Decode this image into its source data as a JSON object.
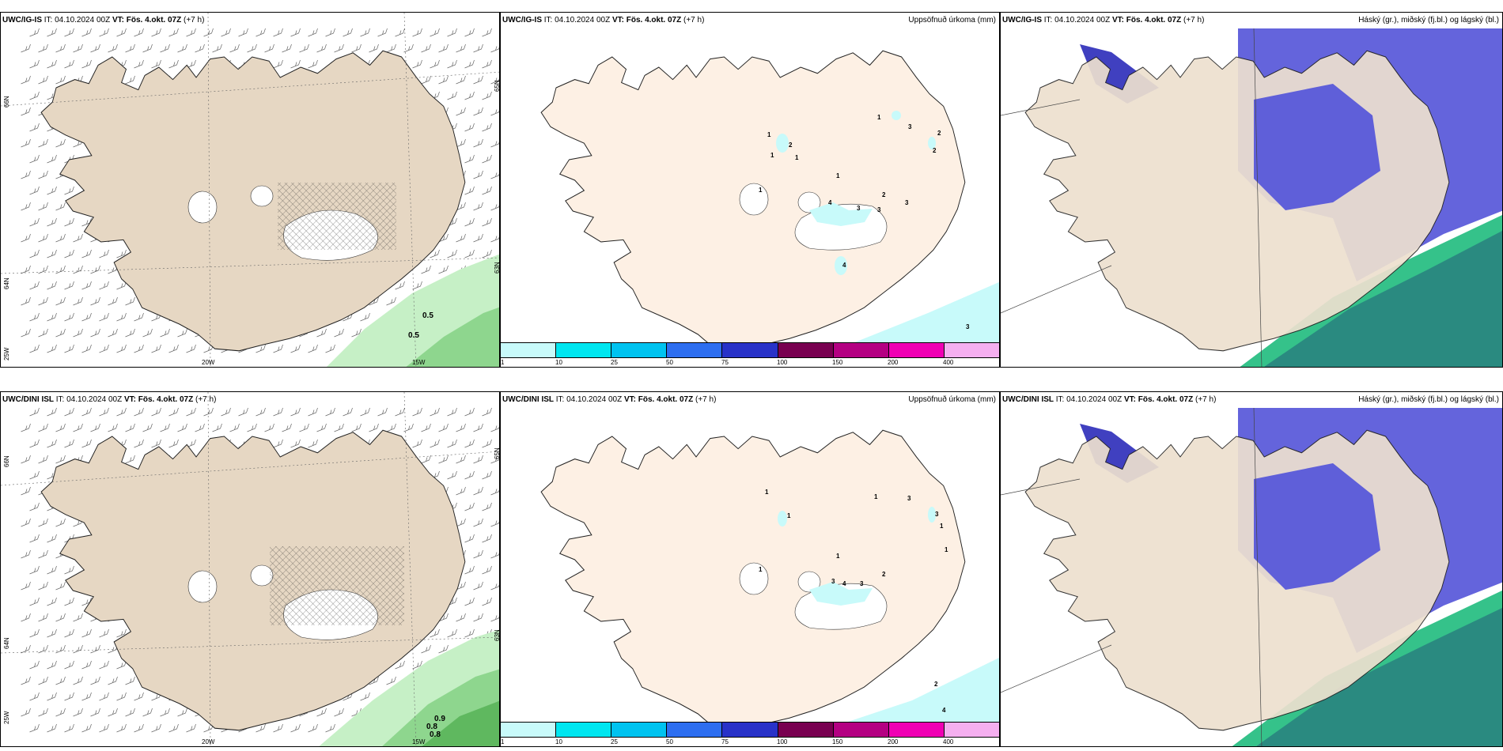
{
  "rows": [
    {
      "model": "UWC/IG-IS",
      "it_label": "IT: 04.10.2024 00Z",
      "vt_label": "VT: Fös. 4.okt. 07Z",
      "lead": "(+7 h)",
      "wind_labels": [
        "0.5",
        "0.5"
      ],
      "precip_numbers": [
        "1",
        "2",
        "1",
        "1",
        "1",
        "3",
        "2",
        "2",
        "1",
        "2",
        "4",
        "3",
        "3",
        "3",
        "1",
        "4",
        "3"
      ]
    },
    {
      "model": "UWC/DINI ISL",
      "it_label": "IT: 04.10.2024 00Z",
      "vt_label": "VT: Fös. 4.okt. 07Z",
      "lead": "(+7 h)",
      "wind_labels": [
        "0.9",
        "0.8",
        "0.8"
      ],
      "precip_numbers": [
        "1",
        "1",
        "1",
        "1",
        "3",
        "3",
        "1",
        "1",
        "3",
        "4",
        "3",
        "2",
        "1",
        "2",
        "4"
      ]
    }
  ],
  "panel_titles": {
    "precip": "Uppsöfnuð úrkoma (mm)",
    "cloud": "Háský (gr.), miðský (fj.bl.) og lágský (bl.)"
  },
  "axis_labels": {
    "lat66": "66N",
    "lat65": "65N",
    "lat64": "64N",
    "lat63": "63N",
    "lon20": "20W",
    "lon15": "15W",
    "lon25": "25W"
  },
  "colorbar": {
    "ticks": [
      "1",
      "10",
      "25",
      "50",
      "75",
      "100",
      "150",
      "200",
      "400"
    ],
    "colors": [
      "#c8fafa",
      "#00e6f0",
      "#00c3f0",
      "#2d6ef0",
      "#2832c8",
      "#780050",
      "#b40082",
      "#f000b4",
      "#f5aff0"
    ]
  },
  "colors": {
    "land": "#ede0cf",
    "land_precip": "#fdf0e4",
    "glacier": "#ffffff",
    "cloud_mid": "#5f5fd9",
    "cloud_low": "#3d3dc8",
    "cloud_high": "#2ca37a"
  }
}
